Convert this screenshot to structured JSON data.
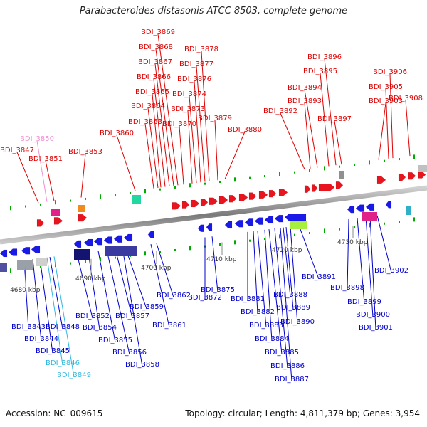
{
  "title": "Parabacteroides distasonis ATCC 8503, complete genome",
  "accession": "Accession: NC_009615",
  "topology": "Topology: circular; Length: 4,811,379 bp; Genes: 3,954",
  "colors": {
    "forward": "#e8141e",
    "reverse": "#1a1ae8",
    "rna_forward": "#f090d0",
    "rna_reverse": "#30b8e0",
    "backbone": "#808080",
    "tick": "#00aa00",
    "label_forward": "#dd0000",
    "label_reverse": "#0000cc"
  },
  "scale_labels": [
    "4680 kbp",
    "4690 kbp",
    "4700 kbp",
    "4710 kbp",
    "4720 kbp",
    "4730 kbp"
  ],
  "forward_labels": [
    "BDI_3847",
    "BDI_3850",
    "BDI_3851",
    "BDI_3853",
    "BDI_3860",
    "BDI_3863",
    "BDI_3864",
    "BDI_3865",
    "BDI_3866",
    "BDI_3867",
    "BDI_3868",
    "BDI_3869",
    "BDI_3870",
    "BDI_3873",
    "BDI_3874",
    "BDI_3876",
    "BDI_3877",
    "BDI_3878",
    "BDI_3879",
    "BDI_3880",
    "BDI_3892",
    "BDI_3893",
    "BDI_3894",
    "BDI_3895",
    "BDI_3896",
    "BDI_3897",
    "BDI_3903",
    "BDI_3905",
    "BDI_3906",
    "BDI_3908"
  ],
  "reverse_labels": [
    "BDI_3843",
    "BDI_3844",
    "BDI_3845",
    "BDI_3846",
    "BDI_3848",
    "BDI_3849",
    "BDI_3852",
    "BDI_3854",
    "BDI_3855",
    "BDI_3856",
    "BDI_3857",
    "BDI_3858",
    "BDI_3859",
    "BDI_3861",
    "BDI_3862",
    "BDI_3872",
    "BDI_3875",
    "BDI_3881",
    "BDI_3882",
    "BDI_3883",
    "BDI_3884",
    "BDI_3885",
    "BDI_3886",
    "BDI_3887",
    "BDI_3888",
    "BDI_3889",
    "BDI_3890",
    "BDI_3891",
    "BDI_3898",
    "BDI_3899",
    "BDI_3900",
    "BDI_3901",
    "BDI_3902"
  ]
}
